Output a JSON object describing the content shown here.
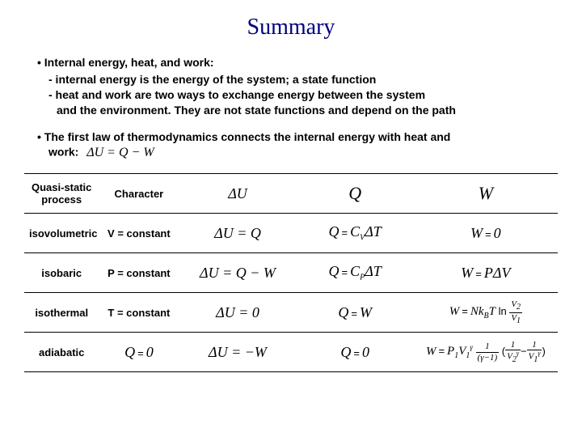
{
  "title": "Summary",
  "section1": {
    "head": "• Internal energy, heat, and work:",
    "line1": "- internal energy is the energy of the system; a state function",
    "line2": "- heat and work are two ways to exchange energy between the system",
    "line2b": "and the environment. They are not state functions and depend on the path"
  },
  "section2": {
    "line1": "• The first law of thermodynamics connects the internal energy with heat and",
    "line2": "work:",
    "formula": "ΔU = Q − W"
  },
  "table": {
    "header": {
      "c1": "Quasi-static process",
      "c2": "Character",
      "c3": "ΔU",
      "c4": "Q",
      "c5": "W"
    },
    "rows": [
      {
        "process": "isovolumetric",
        "character": "V = constant",
        "dU": "ΔU = Q",
        "Q_html": "<span class='math'>Q</span><span class='op'>=</span><span class='math'>C<span class='sub-s'>V</span></span><span class='math'>ΔT</span>",
        "W_html": "<span class='math'>W</span><span class='op'>=</span><span class='math'>0</span>"
      },
      {
        "process": "isobaric",
        "character": "P = constant",
        "dU": "ΔU = Q − W",
        "Q_html": "<span class='math'>Q</span><span class='op'>=</span><span class='math'>C<span class='sub-s'>P</span></span><span class='math'>ΔT</span>",
        "W_html": "<span class='math'>W</span><span class='op'>=</span><span class='math'>PΔV</span>"
      },
      {
        "process": "isothermal",
        "character": "T = constant",
        "dU": "ΔU = 0",
        "Q_html": "<span class='math'>Q</span><span class='op'>=</span><span class='math'>W</span>",
        "W_html": "<span class='mathsm'>W</span><span class='op'>=</span><span class='mathsm'>Nk<span class='sub-s'>B</span>T</span> <span style='font-style:normal'>ln</span> <span class='frac'><span class='n'>V<span class='sub-s'>2</span></span><span class='d'>V<span class='sub-s'>1</span></span></span>"
      },
      {
        "process": "adiabatic",
        "character_html": "<span class='math'>Q</span><span class='op'>=</span><span class='math'>0</span>",
        "dU": "ΔU = −W",
        "Q_html": "<span class='math'>Q</span><span class='op'>=</span><span class='math'>0</span>",
        "W_html": "<span class='mathsm'>W</span><span class='op'>=</span><span class='mathsm'>P<span class='sub-s'>1</span>V<span class='sub-s'>1</span><sup style='font-size:9px'>γ</sup></span> <span class='frac'><span class='n'>1</span><span class='d'>(γ−1)</span></span> (<span class='frac'><span class='n'>1</span><span class='d'>V<span class='sub-s'>2</span><sup style='font-size:8px'>γ</sup></span></span>−<span class='frac'><span class='n'>1</span><span class='d'>V<span class='sub-s'>1</span><sup style='font-size:8px'>γ</sup></span></span>)"
      }
    ]
  },
  "colors": {
    "title": "#000080",
    "text": "#000000",
    "background": "#ffffff",
    "border": "#000000"
  }
}
